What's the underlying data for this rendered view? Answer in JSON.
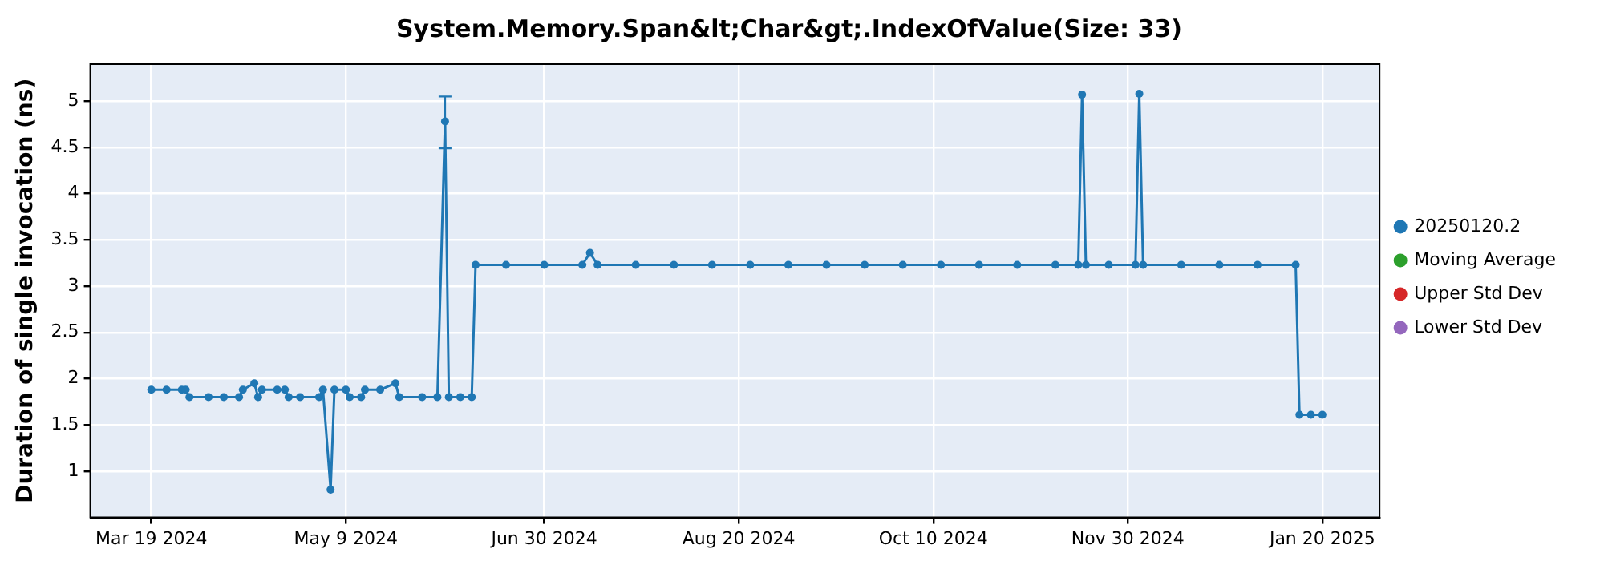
{
  "chart_data": {
    "type": "line",
    "title": "System.Memory.Span&lt;Char&gt;.IndexOfValue(Size: 33)",
    "ylabel": "Duration of single invocation (ns)",
    "x": [
      "2024-03-19",
      "2024-03-23",
      "2024-03-27",
      "2024-03-28",
      "2024-03-29",
      "2024-04-03",
      "2024-04-07",
      "2024-04-11",
      "2024-04-12",
      "2024-04-15",
      "2024-04-16",
      "2024-04-17",
      "2024-04-21",
      "2024-04-23",
      "2024-04-24",
      "2024-04-27",
      "2024-05-02",
      "2024-05-03",
      "2024-05-05",
      "2024-05-06",
      "2024-05-09",
      "2024-05-10",
      "2024-05-13",
      "2024-05-14",
      "2024-05-18",
      "2024-05-22",
      "2024-05-23",
      "2024-05-29",
      "2024-06-02",
      "2024-06-04",
      "2024-06-05",
      "2024-06-08",
      "2024-06-11",
      "2024-06-12",
      "2024-06-20",
      "2024-06-30",
      "2024-07-10",
      "2024-07-12",
      "2024-07-14",
      "2024-07-24",
      "2024-08-03",
      "2024-08-13",
      "2024-08-23",
      "2024-09-02",
      "2024-09-12",
      "2024-09-22",
      "2024-10-02",
      "2024-10-12",
      "2024-10-22",
      "2024-11-01",
      "2024-11-11",
      "2024-11-17",
      "2024-11-18",
      "2024-11-19",
      "2024-11-25",
      "2024-12-02",
      "2024-12-03",
      "2024-12-04",
      "2024-12-14",
      "2024-12-24",
      "2025-01-03",
      "2025-01-13",
      "2025-01-14",
      "2025-01-17",
      "2025-01-20"
    ],
    "series": [
      {
        "name": "20250120.2",
        "color": "#1f77b4",
        "values": [
          1.88,
          1.88,
          1.88,
          1.88,
          1.8,
          1.8,
          1.8,
          1.8,
          1.88,
          1.95,
          1.8,
          1.88,
          1.88,
          1.88,
          1.8,
          1.8,
          1.8,
          1.88,
          0.8,
          1.88,
          1.88,
          1.8,
          1.8,
          1.88,
          1.88,
          1.95,
          1.8,
          1.8,
          1.8,
          4.78,
          1.8,
          1.8,
          1.8,
          3.23,
          3.23,
          3.23,
          3.23,
          3.36,
          3.23,
          3.23,
          3.23,
          3.23,
          3.23,
          3.23,
          3.23,
          3.23,
          3.23,
          3.23,
          3.23,
          3.23,
          3.23,
          3.23,
          5.07,
          3.23,
          3.23,
          3.23,
          5.08,
          3.23,
          3.23,
          3.23,
          3.23,
          3.23,
          1.61,
          1.61,
          1.61
        ],
        "errors": [
          null,
          null,
          null,
          null,
          null,
          null,
          null,
          null,
          null,
          null,
          null,
          null,
          null,
          null,
          null,
          null,
          null,
          null,
          null,
          null,
          null,
          null,
          null,
          null,
          null,
          null,
          null,
          null,
          null,
          [
            4.49,
            5.05
          ],
          null,
          null,
          null,
          null,
          null,
          null,
          null,
          null,
          null,
          null,
          null,
          null,
          null,
          null,
          null,
          null,
          null,
          null,
          null,
          null,
          null,
          null,
          null,
          null,
          null,
          null,
          null,
          null,
          null,
          null,
          null,
          null,
          null,
          null,
          null
        ]
      },
      {
        "name": "Moving Average",
        "color": "#2ca02c",
        "values": [
          null,
          null,
          null,
          null,
          null,
          null,
          null,
          null,
          null,
          null,
          null,
          null,
          null,
          null,
          null,
          null,
          null,
          null,
          null,
          null,
          null,
          null,
          null,
          null,
          null,
          null,
          null,
          null,
          null,
          null,
          null,
          null,
          null,
          null,
          null,
          null,
          null,
          null,
          null,
          null,
          null,
          null,
          null,
          null,
          null,
          null,
          null,
          null,
          null,
          null,
          null,
          null,
          null,
          null,
          null,
          null,
          null,
          null,
          null,
          null,
          null,
          null,
          null,
          null,
          null
        ]
      },
      {
        "name": "Upper Std Dev",
        "color": "#d62728",
        "values": [
          null,
          null,
          null,
          null,
          null,
          null,
          null,
          null,
          null,
          null,
          null,
          null,
          null,
          null,
          null,
          null,
          null,
          null,
          null,
          null,
          null,
          null,
          null,
          null,
          null,
          null,
          null,
          null,
          null,
          null,
          null,
          null,
          null,
          null,
          null,
          null,
          null,
          null,
          null,
          null,
          null,
          null,
          null,
          null,
          null,
          null,
          null,
          null,
          null,
          null,
          null,
          null,
          null,
          null,
          null,
          null,
          null,
          null,
          null,
          null,
          null,
          null,
          null,
          null,
          null
        ]
      },
      {
        "name": "Lower Std Dev",
        "color": "#9467bd",
        "values": [
          null,
          null,
          null,
          null,
          null,
          null,
          null,
          null,
          null,
          null,
          null,
          null,
          null,
          null,
          null,
          null,
          null,
          null,
          null,
          null,
          null,
          null,
          null,
          null,
          null,
          null,
          null,
          null,
          null,
          null,
          null,
          null,
          null,
          null,
          null,
          null,
          null,
          null,
          null,
          null,
          null,
          null,
          null,
          null,
          null,
          null,
          null,
          null,
          null,
          null,
          null,
          null,
          null,
          null,
          null,
          null,
          null,
          null,
          null,
          null,
          null,
          null,
          null,
          null,
          null
        ]
      }
    ],
    "xlim": [
      "2024-03-03",
      "2025-02-04"
    ],
    "xticks": [
      {
        "value": "2024-03-19",
        "label": "Mar 19 2024"
      },
      {
        "value": "2024-05-09",
        "label": "May 9 2024"
      },
      {
        "value": "2024-06-30",
        "label": "Jun 30 2024"
      },
      {
        "value": "2024-08-20",
        "label": "Aug 20 2024"
      },
      {
        "value": "2024-10-10",
        "label": "Oct 10 2024"
      },
      {
        "value": "2024-11-30",
        "label": "Nov 30 2024"
      },
      {
        "value": "2025-01-20",
        "label": "Jan 20 2025"
      }
    ],
    "ylim": [
      0.5,
      5.4
    ],
    "yticks": [
      1,
      1.5,
      2,
      2.5,
      3,
      3.5,
      4,
      4.5,
      5
    ],
    "grid": true,
    "legend": "right",
    "marker": "circle",
    "line_style": "solid"
  }
}
